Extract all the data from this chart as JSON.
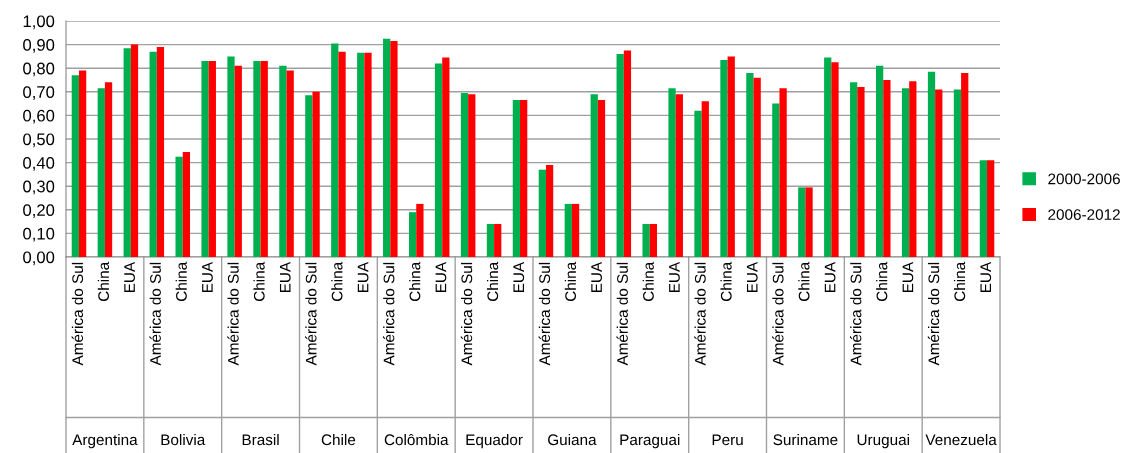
{
  "chart_data": {
    "type": "bar",
    "categories": [
      "América do Sul",
      "China",
      "EUA",
      "América do Sul",
      "China",
      "EUA",
      "América do Sul",
      "China",
      "EUA",
      "América do Sul",
      "China",
      "EUA",
      "América do Sul",
      "China",
      "EUA",
      "América do Sul",
      "China",
      "EUA",
      "América do Sul",
      "China",
      "EUA",
      "América do Sul",
      "China",
      "EUA",
      "América do Sul",
      "China",
      "EUA",
      "América do Sul",
      "China",
      "EUA",
      "América do Sul",
      "China",
      "EUA",
      "América do Sul",
      "China",
      "EUA"
    ],
    "series": [
      {
        "name": "2000-2006",
        "color": "#00b050",
        "values": [
          0.77,
          0.715,
          0.885,
          0.87,
          0.425,
          0.83,
          0.85,
          0.83,
          0.81,
          0.685,
          0.905,
          0.865,
          0.925,
          0.19,
          0.82,
          0.695,
          0.14,
          0.665,
          0.37,
          0.225,
          0.69,
          0.86,
          0.14,
          0.715,
          0.62,
          0.835,
          0.78,
          0.65,
          0.295,
          0.845,
          0.74,
          0.81,
          0.715,
          0.785,
          0.71,
          0.41
        ]
      },
      {
        "name": "2006-2012",
        "color": "#ff0000",
        "values": [
          0.79,
          0.74,
          0.9,
          0.89,
          0.445,
          0.83,
          0.81,
          0.83,
          0.79,
          0.7,
          0.87,
          0.865,
          0.915,
          0.225,
          0.845,
          0.69,
          0.14,
          0.665,
          0.39,
          0.225,
          0.665,
          0.875,
          0.14,
          0.69,
          0.66,
          0.85,
          0.76,
          0.715,
          0.295,
          0.825,
          0.72,
          0.75,
          0.745,
          0.71,
          0.78,
          0.41
        ]
      }
    ],
    "annotations": [
      "Argentina",
      "Bolivia",
      "Brasil",
      "Chile",
      "Colômbia",
      "Equador",
      "Guiana",
      "Paraguai",
      "Peru",
      "Suriname",
      "Uruguai",
      "Venezuela"
    ],
    "ylim": [
      0,
      1
    ],
    "yticks": [
      {
        "value": 0,
        "label": "0,00"
      },
      {
        "value": 0.1,
        "label": "0,10"
      },
      {
        "value": 0.2,
        "label": "0,20"
      },
      {
        "value": 0.3,
        "label": "0,30"
      },
      {
        "value": 0.4,
        "label": "0,40"
      },
      {
        "value": 0.5,
        "label": "0,50"
      },
      {
        "value": 0.6,
        "label": "0,60"
      },
      {
        "value": 0.7,
        "label": "0,70"
      },
      {
        "value": 0.8,
        "label": "0,80"
      },
      {
        "value": 0.9,
        "label": "0,90"
      },
      {
        "value": 1,
        "label": "1,00"
      }
    ],
    "grid": "y",
    "legend": "right"
  }
}
